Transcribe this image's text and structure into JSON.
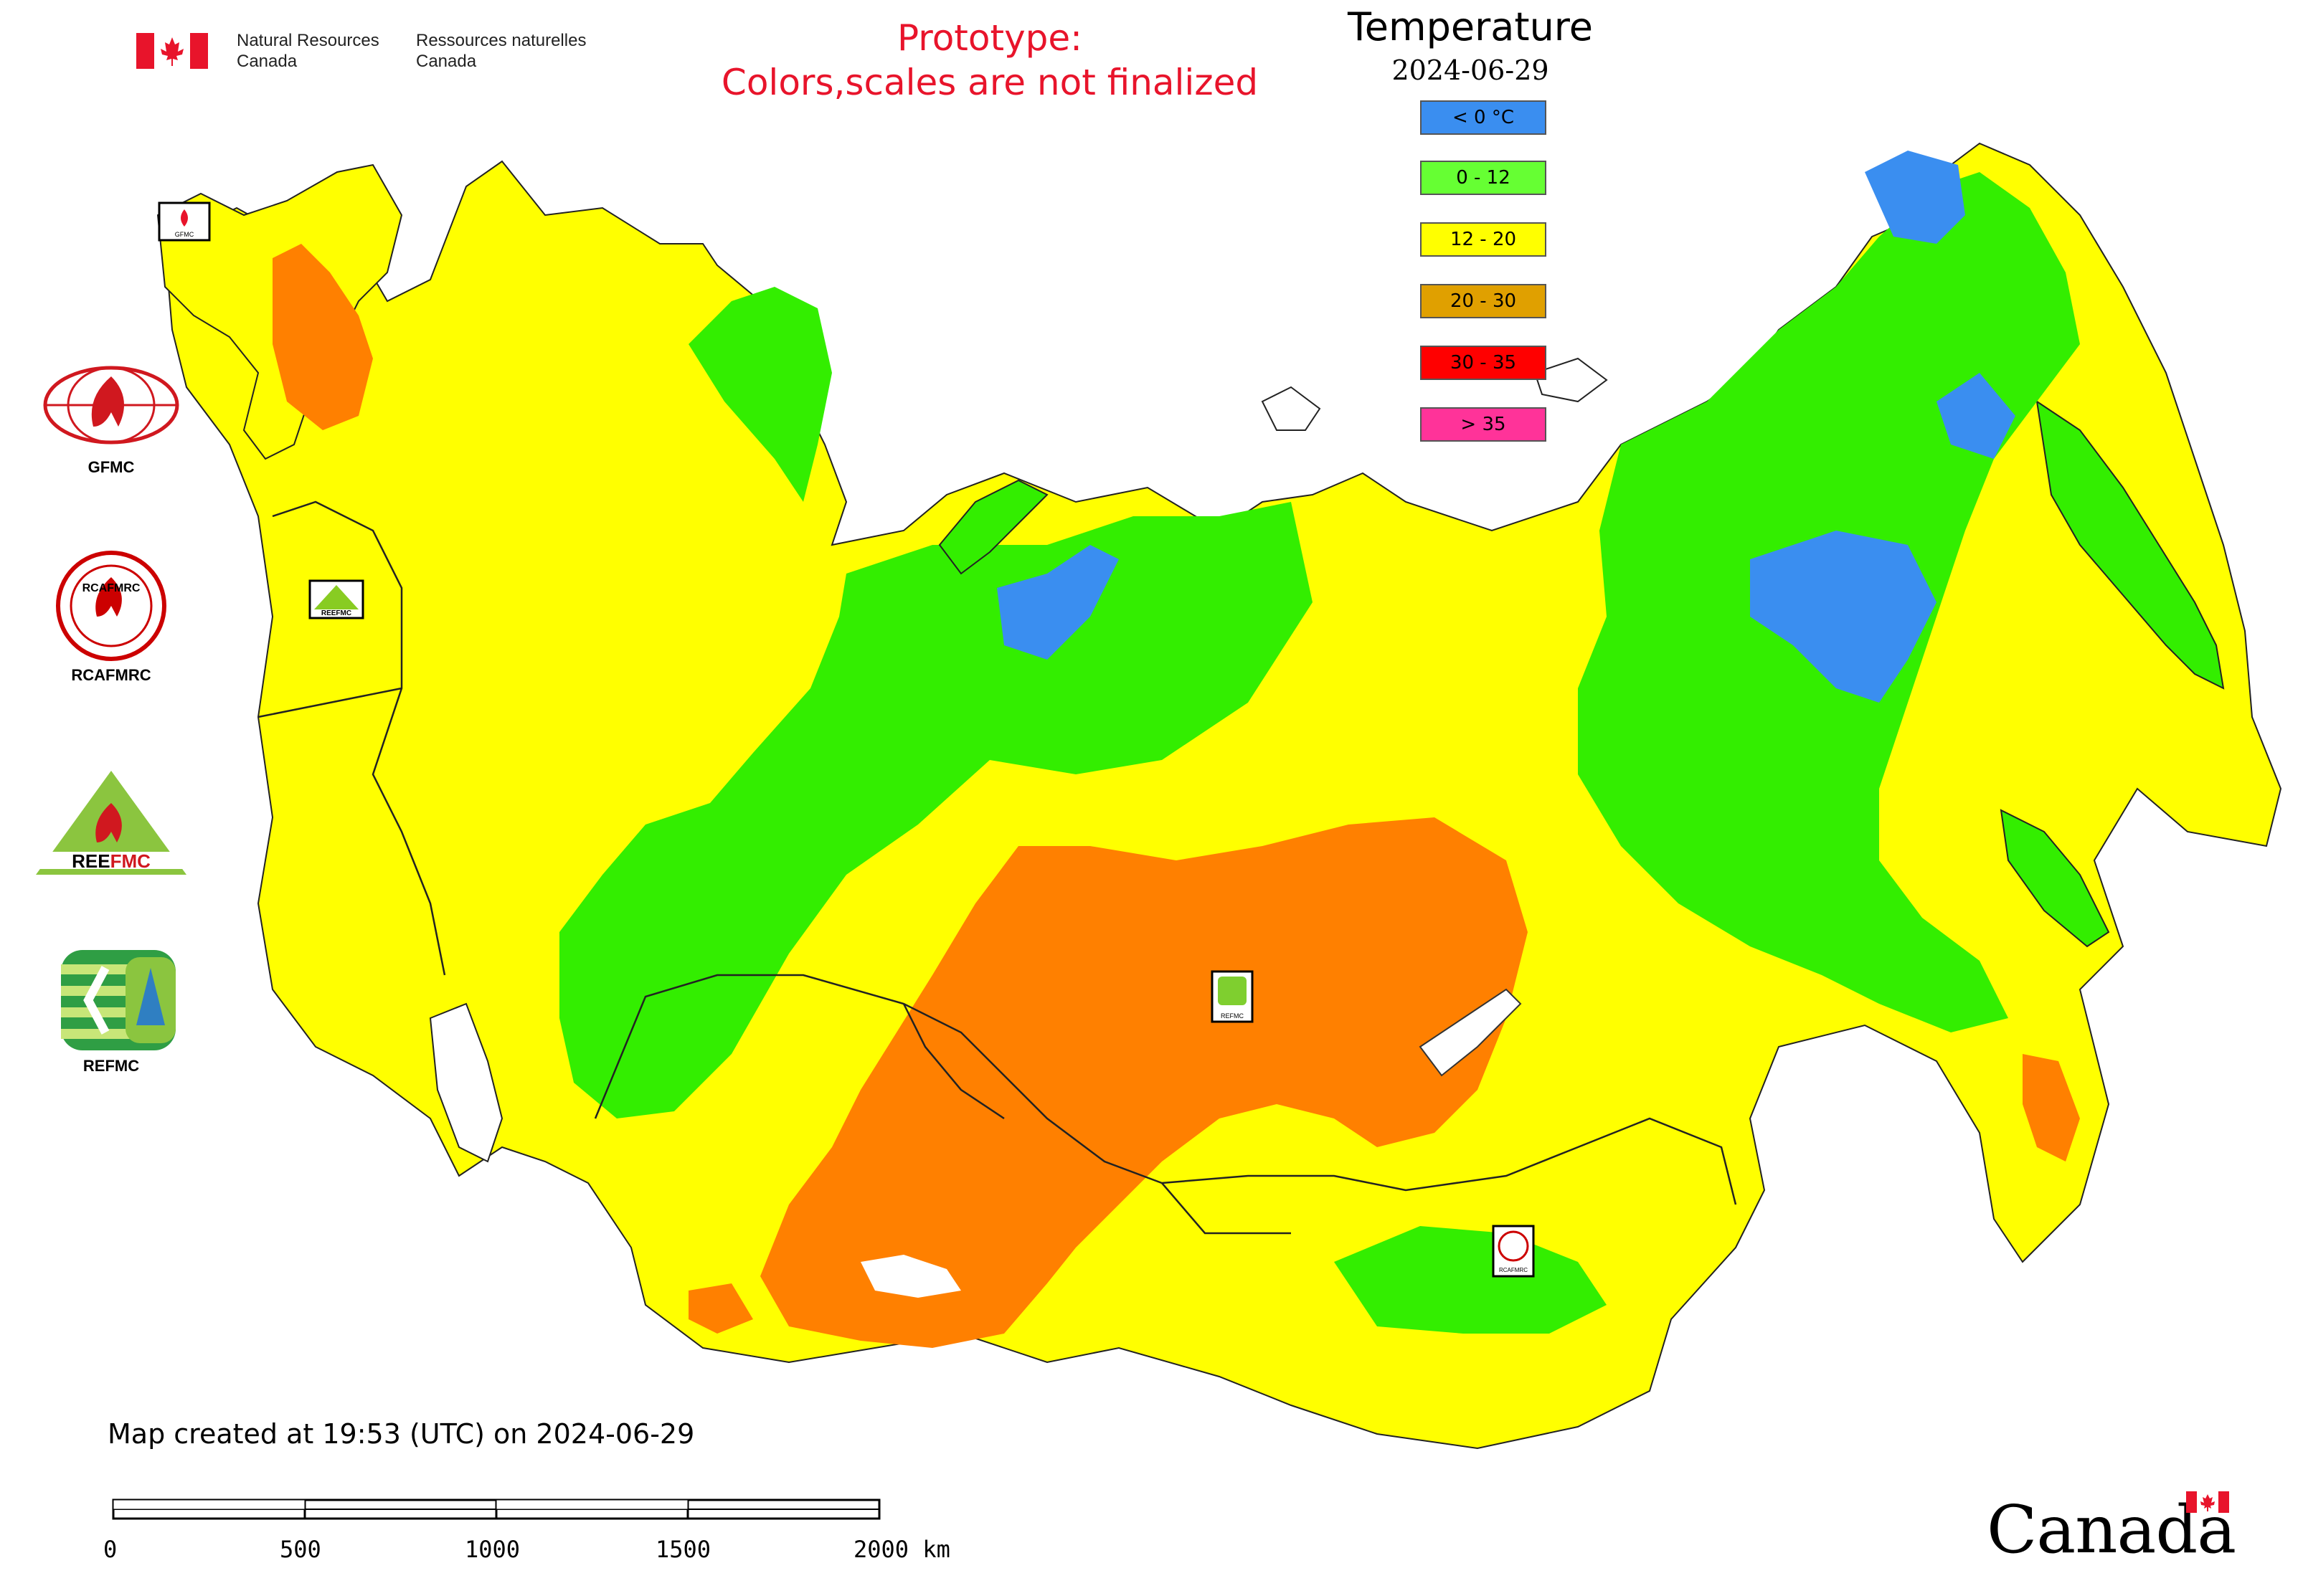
{
  "header": {
    "org_en_line1": "Natural Resources",
    "org_en_line2": "Canada",
    "org_fr_line1": "Ressources naturelles",
    "org_fr_line2": "Canada",
    "notice_line1": "Prototype:",
    "notice_line2": "Colors,scales are not finalized",
    "notice_color": "#e8142b"
  },
  "legend": {
    "title": "Temperature",
    "date": "2024-06-29",
    "items": [
      {
        "label": "< 0 °C",
        "color": "#3a8ef0"
      },
      {
        "label": "0 - 12",
        "color": "#66ff33"
      },
      {
        "label": "12 - 20",
        "color": "#ffff00"
      },
      {
        "label": "20 - 30",
        "color": "#e0a000"
      },
      {
        "label": "30 - 35",
        "color": "#ff0000"
      },
      {
        "label": "> 35",
        "color": "#ff3399"
      }
    ]
  },
  "map": {
    "colors": {
      "cold": "#3a8ef0",
      "cool": "#33ee00",
      "mild": "#ffff00",
      "warm": "#ff8000",
      "land_border": "#000000"
    }
  },
  "partners": [
    {
      "name": "GFMC",
      "icon": "fire-flame-globe-icon"
    },
    {
      "name": "RCAFMRC",
      "icon": "regional-center-seal-icon"
    },
    {
      "name": "REEFMC",
      "icon": "triangle-flame-icon"
    },
    {
      "name": "REFMC",
      "icon": "sigma-tree-icon"
    }
  ],
  "map_markers": [
    {
      "label": "GFMC"
    },
    {
      "label": "REEFMC"
    },
    {
      "label": "REFMC"
    },
    {
      "label": "RCAFMRC"
    }
  ],
  "footer": {
    "created": "Map created at 19:53 (UTC) on 2024-06-29",
    "scale_labels": [
      "0",
      "500",
      "1000",
      "1500",
      "2000 km"
    ],
    "wordmark": "Canada"
  }
}
